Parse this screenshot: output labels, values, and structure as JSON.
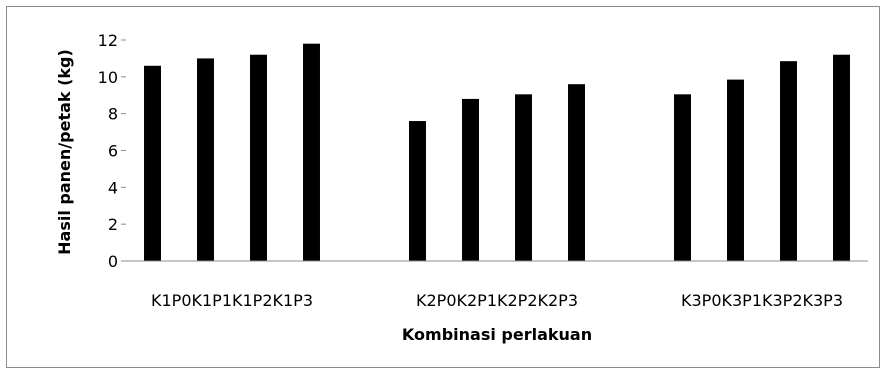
{
  "chart_data": {
    "type": "bar",
    "xlabel": "Kombinasi perlakuan",
    "ylabel": "Hasil panen/petak (kg)",
    "ylim": [
      0,
      12
    ],
    "yticks": [
      0,
      2,
      4,
      6,
      8,
      10,
      12
    ],
    "grid": false,
    "legend": "none",
    "bar_color": "#000000",
    "groups": [
      {
        "tick_label": "K1P0K1P1K1P2K1P3",
        "categories": [
          "K1P0",
          "K1P1",
          "K1P2",
          "K1P3"
        ],
        "values": [
          10.6,
          11.0,
          11.2,
          11.8
        ]
      },
      {
        "tick_label": "K2P0K2P1K2P2K2P3",
        "categories": [
          "K2P0",
          "K2P1",
          "K2P2",
          "K2P3"
        ],
        "values": [
          7.6,
          8.8,
          9.05,
          9.6
        ]
      },
      {
        "tick_label": "K3P0K3P1K3P2K3P3",
        "categories": [
          "K3P0",
          "K3P1",
          "K3P2",
          "K3P3"
        ],
        "values": [
          9.05,
          9.85,
          10.85,
          11.2
        ]
      }
    ]
  }
}
